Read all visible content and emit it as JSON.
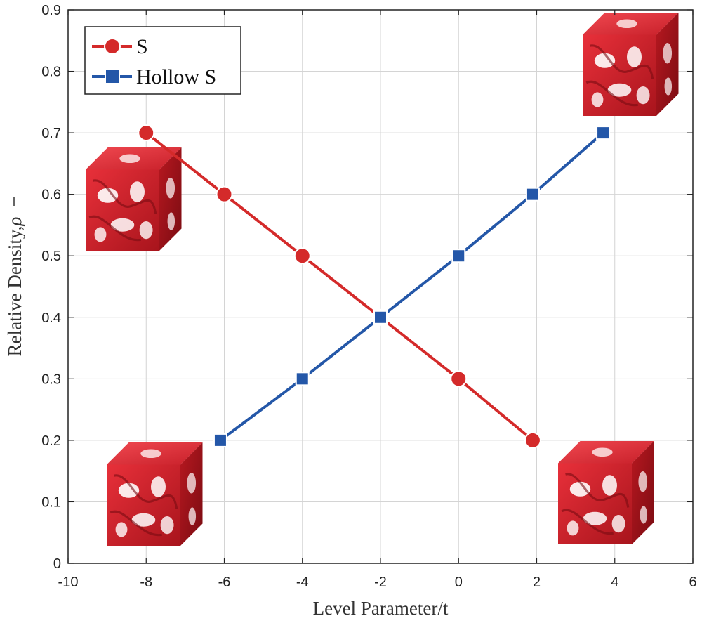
{
  "chart_data": {
    "type": "line",
    "xlabel": "Level Parameter/t",
    "ylabel": "Relative Density,",
    "ylabel_symbol": "ρ",
    "xlim": [
      -10,
      6
    ],
    "ylim": [
      0,
      0.9
    ],
    "xticks": [
      -10,
      -8,
      -6,
      -4,
      -2,
      0,
      2,
      4,
      6
    ],
    "yticks": [
      0,
      0.1,
      0.2,
      0.3,
      0.4,
      0.5,
      0.6,
      0.7,
      0.8,
      0.9
    ],
    "xtick_labels": [
      "-10",
      "-8",
      "-6",
      "-4",
      "-2",
      "0",
      "2",
      "4",
      "6"
    ],
    "ytick_labels": [
      "0",
      "0.1",
      "0.2",
      "0.3",
      "0.4",
      "0.5",
      "0.6",
      "0.7",
      "0.8",
      "0.9"
    ],
    "grid": true,
    "legend_position": "top-left",
    "series": [
      {
        "name": "S",
        "color": "#d42a2a",
        "marker": "circle",
        "x": [
          -8,
          -6,
          -4,
          -2,
          0,
          1.9
        ],
        "y": [
          0.7,
          0.6,
          0.5,
          0.4,
          0.3,
          0.2
        ]
      },
      {
        "name": "Hollow S",
        "color": "#2457a8",
        "marker": "square",
        "x": [
          -6.1,
          -4,
          -2,
          0,
          1.9,
          3.7
        ],
        "y": [
          0.2,
          0.3,
          0.4,
          0.5,
          0.6,
          0.7
        ]
      }
    ],
    "insets": [
      {
        "icon": "red-lattice-cube-icon",
        "near": "top-left"
      },
      {
        "icon": "red-lattice-cube-icon",
        "near": "top-right"
      },
      {
        "icon": "red-lattice-cube-icon",
        "near": "bottom-left"
      },
      {
        "icon": "red-lattice-cube-icon",
        "near": "bottom-right"
      }
    ]
  }
}
